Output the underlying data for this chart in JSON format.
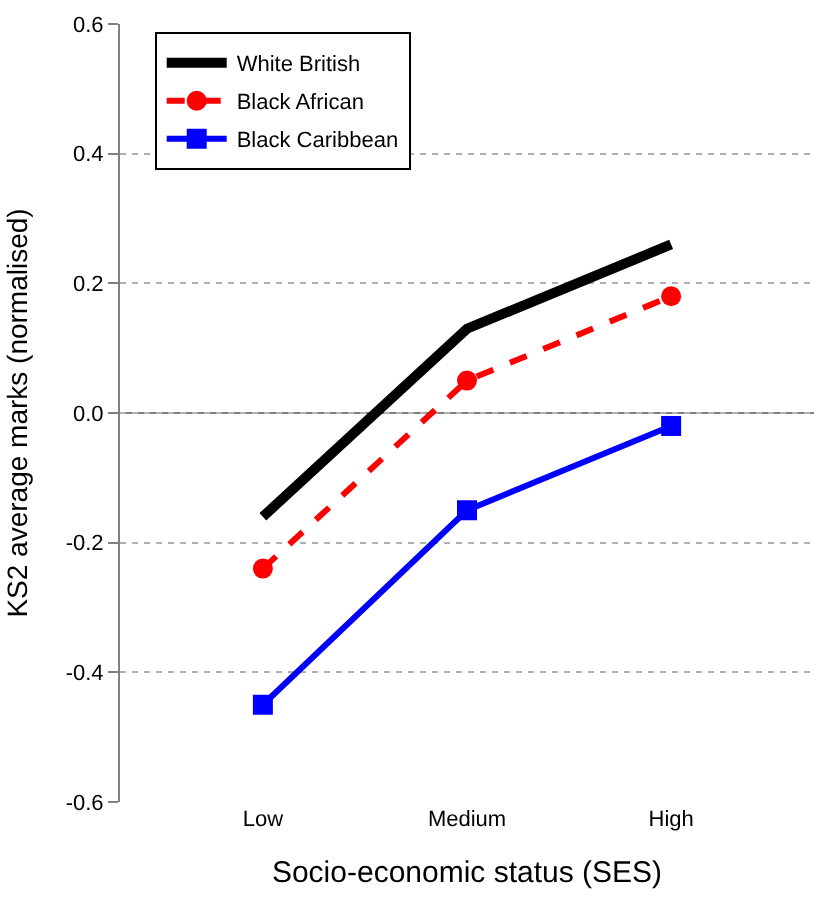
{
  "chart_data": {
    "type": "line",
    "xlabel": "Socio-economic status (SES)",
    "ylabel": "KS2 average marks (normalised)",
    "categories": [
      "Low",
      "Medium",
      "High"
    ],
    "series": [
      {
        "name": "White British",
        "color": "#000000",
        "values": [
          -0.16,
          0.13,
          0.26
        ],
        "marker": "none",
        "line_style": "solid"
      },
      {
        "name": "Black African",
        "color": "#ff0000",
        "values": [
          -0.24,
          0.05,
          0.18
        ],
        "marker": "circle",
        "line_style": "dashed"
      },
      {
        "name": "Black Caribbean",
        "color": "#0000ff",
        "values": [
          -0.45,
          -0.15,
          -0.02
        ],
        "marker": "square",
        "line_style": "solid"
      }
    ],
    "ylim": [
      -0.6,
      0.6
    ],
    "yticks": [
      {
        "value": -0.6,
        "label": "-0.6"
      },
      {
        "value": -0.4,
        "label": "-0.4"
      },
      {
        "value": -0.2,
        "label": "-0.2"
      },
      {
        "value": 0,
        "label": "0.0"
      },
      {
        "value": 0.2,
        "label": "0.2"
      },
      {
        "value": 0.4,
        "label": "0.4"
      },
      {
        "value": 0.6,
        "label": "0.6"
      }
    ],
    "grid": "y",
    "legend": "top left",
    "ref_lines": [
      {
        "axis": "y",
        "value": 0,
        "color": "#808080",
        "line_style": "solid"
      }
    ]
  }
}
